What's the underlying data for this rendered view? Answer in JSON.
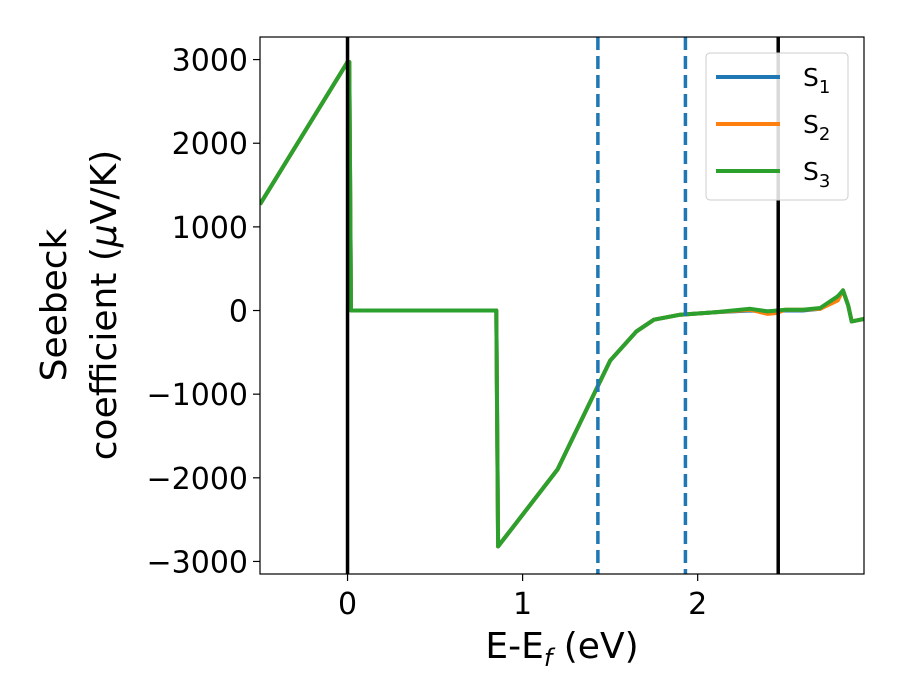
{
  "chart_data": {
    "type": "line",
    "xlabel": "E-E",
    "xlabel_sub": "f",
    "xlabel_unit": " (eV)",
    "ylabel_line1": "Seebeck",
    "ylabel_line2": "coefficient  (",
    "ylabel_mu": "μ",
    "ylabel_unit": "V/K)",
    "xlim": [
      -0.5,
      2.95
    ],
    "ylim": [
      -3150,
      3270
    ],
    "xticks": [
      0,
      1,
      2
    ],
    "xtick_labels": [
      "0",
      "1",
      "2"
    ],
    "yticks": [
      3000,
      2000,
      1000,
      0,
      -1000,
      -2000,
      -3000
    ],
    "ytick_labels": [
      "3000",
      "2000",
      "1000",
      "0",
      "−1000",
      "−2000",
      "−3000"
    ],
    "grid": false,
    "legend_position": "top-right",
    "vlines_solid": [
      0.0,
      2.46
    ],
    "vlines_dashed": [
      1.43,
      1.93
    ],
    "series": [
      {
        "name": "S",
        "sub": "1",
        "color": "#1f77b4",
        "x": [
          -0.5,
          0.0,
          0.01,
          0.02,
          0.85,
          0.86,
          1.2,
          1.5,
          1.65,
          1.75,
          1.9,
          2.1,
          2.3,
          2.4,
          2.5,
          2.6,
          2.7,
          2.8,
          2.83,
          2.86,
          2.88,
          2.95
        ],
        "y": [
          1270,
          2970,
          2970,
          0,
          0,
          -2820,
          -1900,
          -600,
          -250,
          -110,
          -50,
          -20,
          0,
          -10,
          0,
          0,
          20,
          150,
          240,
          60,
          -130,
          -100
        ]
      },
      {
        "name": "S",
        "sub": "2",
        "color": "#ff7f0e",
        "x": [
          -0.5,
          0.0,
          0.01,
          0.02,
          0.85,
          0.86,
          1.2,
          1.5,
          1.65,
          1.75,
          1.9,
          2.1,
          2.3,
          2.4,
          2.45,
          2.5,
          2.6,
          2.7,
          2.8,
          2.83,
          2.86,
          2.88,
          2.95
        ],
        "y": [
          1270,
          2970,
          2970,
          0,
          0,
          -2820,
          -1900,
          -600,
          -250,
          -110,
          -50,
          -20,
          10,
          -40,
          -30,
          10,
          10,
          20,
          120,
          240,
          60,
          -130,
          -100
        ]
      },
      {
        "name": "S",
        "sub": "3",
        "color": "#2ca02c",
        "x": [
          -0.5,
          0.0,
          0.01,
          0.02,
          0.85,
          0.86,
          1.2,
          1.5,
          1.65,
          1.75,
          1.9,
          2.1,
          2.3,
          2.4,
          2.5,
          2.6,
          2.7,
          2.8,
          2.83,
          2.86,
          2.88,
          2.95
        ],
        "y": [
          1270,
          2970,
          2970,
          0,
          0,
          -2820,
          -1900,
          -600,
          -250,
          -110,
          -50,
          -20,
          20,
          -10,
          10,
          10,
          30,
          170,
          240,
          60,
          -130,
          -100
        ]
      }
    ]
  },
  "style": {
    "dashed_line_color": "#1f77b4",
    "solid_line_color": "#000000"
  }
}
